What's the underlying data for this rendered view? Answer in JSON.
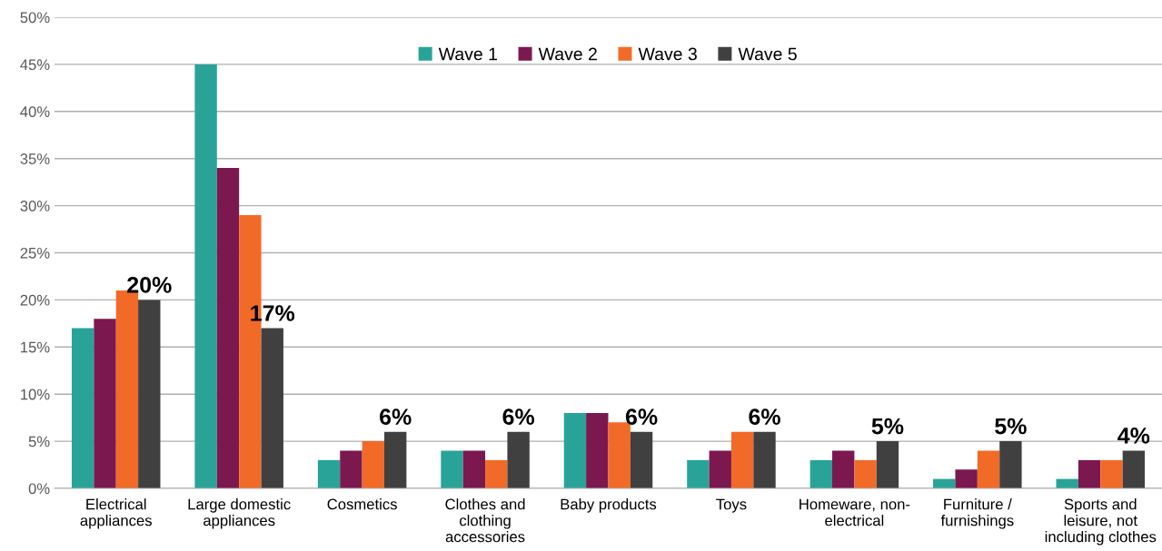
{
  "chart_data": {
    "type": "bar",
    "categories": [
      "Electrical\nappliances",
      "Large domestic\nappliances",
      "Cosmetics",
      "Clothes and\nclothing\naccessories",
      "Baby products",
      "Toys",
      "Homeware, non-\nelectrical",
      "Furniture /\nfurnishings",
      "Sports and\nleisure, not\nincluding clothes"
    ],
    "series": [
      {
        "name": "Wave 1",
        "color": "#29a398",
        "values": [
          17,
          45,
          3,
          4,
          8,
          3,
          3,
          1,
          1
        ]
      },
      {
        "name": "Wave 2",
        "color": "#7b1850",
        "values": [
          18,
          34,
          4,
          4,
          8,
          4,
          4,
          2,
          3
        ]
      },
      {
        "name": "Wave 3",
        "color": "#f26a27",
        "values": [
          21,
          29,
          5,
          3,
          7,
          6,
          3,
          4,
          3
        ]
      },
      {
        "name": "Wave 5",
        "color": "#404040",
        "values": [
          20,
          17,
          6,
          6,
          6,
          6,
          5,
          5,
          4
        ],
        "value_labels": [
          "20%",
          "17%",
          "6%",
          "6%",
          "6%",
          "6%",
          "5%",
          "5%",
          "4%"
        ]
      }
    ],
    "ylim": [
      0,
      50
    ],
    "yticks": [
      {
        "value": 0,
        "label": "0%"
      },
      {
        "value": 5,
        "label": "5%"
      },
      {
        "value": 10,
        "label": "10%"
      },
      {
        "value": 15,
        "label": "15%"
      },
      {
        "value": 20,
        "label": "20%"
      },
      {
        "value": 25,
        "label": "25%"
      },
      {
        "value": 30,
        "label": "30%"
      },
      {
        "value": 35,
        "label": "35%"
      },
      {
        "value": 40,
        "label": "40%"
      },
      {
        "value": 45,
        "label": "45%"
      },
      {
        "value": 50,
        "label": "50%"
      }
    ],
    "grid": "y",
    "legend": "top"
  }
}
